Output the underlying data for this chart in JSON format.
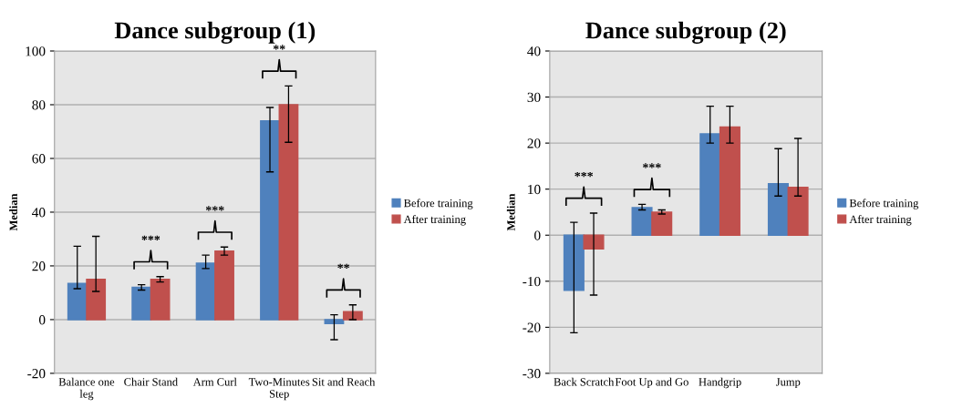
{
  "chart_data": [
    {
      "type": "bar",
      "title": "Dance subgroup (1)",
      "ylabel": "Median",
      "categories": [
        "Balance one\nleg",
        "Chair Stand",
        "Arm Curl",
        "Two-Minutes\nStep",
        "Sit and Reach"
      ],
      "series": [
        {
          "name": "Before training",
          "color": "#4f81bd",
          "values": [
            13.5,
            12,
            21,
            74,
            -1.5
          ],
          "errors": [
            [
              11.5,
              27.3
            ],
            [
              11,
              13
            ],
            [
              19,
              24
            ],
            [
              55,
              79
            ],
            [
              -7.5,
              1.8
            ]
          ]
        },
        {
          "name": "After training",
          "color": "#c0504d",
          "values": [
            15,
            15,
            25.5,
            80,
            3
          ],
          "errors": [
            [
              10.5,
              31
            ],
            [
              14,
              16
            ],
            [
              24,
              27
            ],
            [
              66,
              87
            ],
            [
              0,
              5.5
            ]
          ]
        }
      ],
      "ylim": [
        -20,
        100
      ],
      "yticks": [
        -20,
        0,
        20,
        40,
        60,
        80,
        100
      ],
      "grid": "y",
      "legend": "right",
      "annotations": [
        null,
        "***",
        "***",
        "**",
        "**"
      ]
    },
    {
      "type": "bar",
      "title": "Dance subgroup (2)",
      "ylabel": "Median",
      "categories": [
        "Back Scratch",
        "Foot Up and Go",
        "Handgrip",
        "Jump"
      ],
      "series": [
        {
          "name": "Before training",
          "color": "#4f81bd",
          "values": [
            -12,
            6,
            22,
            11.2
          ],
          "errors": [
            [
              -21.2,
              2.8
            ],
            [
              5.5,
              6.7
            ],
            [
              20,
              28
            ],
            [
              8.5,
              18.8
            ]
          ]
        },
        {
          "name": "After training",
          "color": "#c0504d",
          "values": [
            -3,
            5,
            23.5,
            10.4
          ],
          "errors": [
            [
              -13,
              4.8
            ],
            [
              4.6,
              5.5
            ],
            [
              20,
              28
            ],
            [
              8.5,
              21
            ]
          ]
        }
      ],
      "ylim": [
        -30,
        40
      ],
      "yticks": [
        -30,
        -20,
        -10,
        0,
        10,
        20,
        30,
        40
      ],
      "grid": "y",
      "legend": "right",
      "annotations": [
        "***",
        "***",
        null,
        null
      ]
    }
  ]
}
